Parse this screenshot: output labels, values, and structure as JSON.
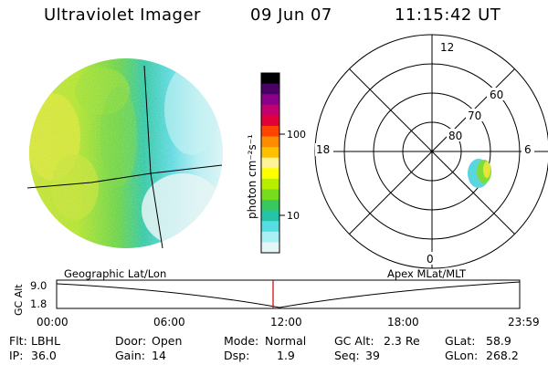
{
  "header": {
    "title": "Ultraviolet Imager",
    "date": "09 Jun 07",
    "time": "11:15:42 UT"
  },
  "colorbar": {
    "unit": "photon cm⁻²s⁻¹",
    "ticks": [
      "100",
      "10"
    ],
    "colors": [
      "#000000",
      "#4b0066",
      "#8a008a",
      "#c2006f",
      "#e2003b",
      "#ff4300",
      "#ff8c00",
      "#ffc000",
      "#fff39a",
      "#ffff00",
      "#b8ef00",
      "#78dc1e",
      "#38c95e",
      "#25c4a8",
      "#55dde2",
      "#a9f0f5",
      "#e4f6f6"
    ]
  },
  "polar": {
    "clock_labels": [
      "12",
      "6",
      "0",
      "18"
    ],
    "lat_labels": [
      "60",
      "70",
      "80"
    ]
  },
  "timeline": {
    "left_label": "Geographic Lat/Lon",
    "right_label": "Apex MLat/MLT",
    "y_axis_title": "GC Alt",
    "y_ticks": [
      "9.0",
      "1.8"
    ],
    "x_ticks": [
      "00:00",
      "06:00",
      "12:00",
      "18:00",
      "23:59"
    ],
    "current_time_marker": "11:15:42"
  },
  "status": {
    "flt_label": "Flt:",
    "flt": "LBHL",
    "ip_label": "IP:",
    "ip": "36.0",
    "door_label": "Door:",
    "door": "Open",
    "gain_label": "Gain:",
    "gain": "14",
    "mode_label": "Mode:",
    "mode": "Normal",
    "dsp_label": "Dsp:",
    "dsp": "1.9",
    "gcalt_label": "GC Alt:",
    "gcalt": "2.3 Re",
    "seq_label": "Seq:",
    "seq": "39",
    "glat_label": "GLat:",
    "glat": "58.9",
    "glon_label": "GLon:",
    "glon": "268.2"
  }
}
